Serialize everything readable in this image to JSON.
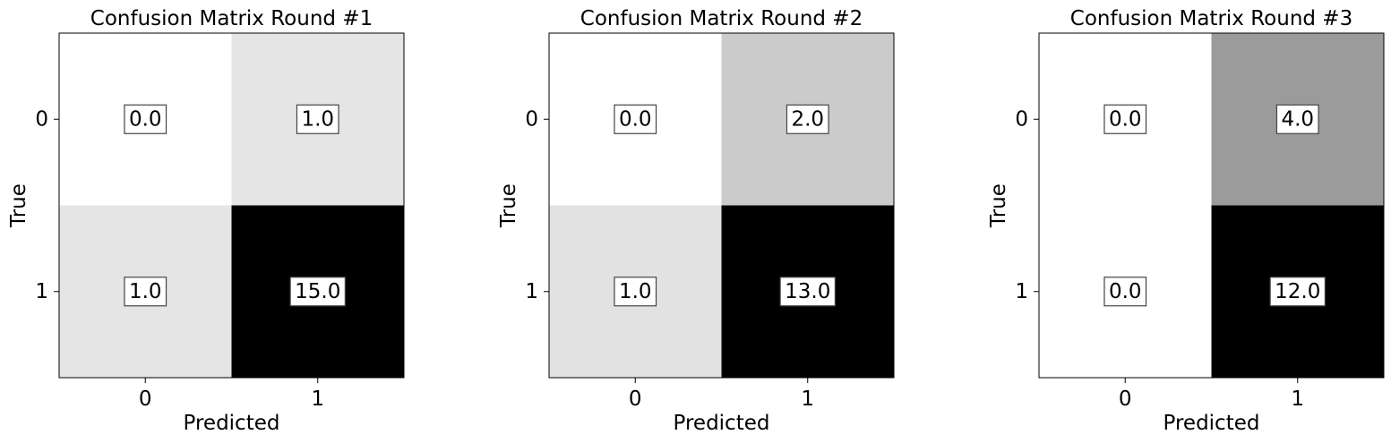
{
  "chart_data": [
    {
      "type": "heatmap",
      "title": "Confusion Matrix Round #1",
      "xlabel": "Predicted",
      "ylabel": "True",
      "x_categories": [
        "0",
        "1"
      ],
      "y_categories": [
        "0",
        "1"
      ],
      "values": [
        [
          0.0,
          1.0
        ],
        [
          1.0,
          15.0
        ]
      ],
      "cell_labels": [
        [
          "0.0",
          "1.0"
        ],
        [
          "1.0",
          "15.0"
        ]
      ],
      "colormap": "Greys",
      "color_range": [
        0,
        15
      ]
    },
    {
      "type": "heatmap",
      "title": "Confusion Matrix Round #2",
      "xlabel": "Predicted",
      "ylabel": "True",
      "x_categories": [
        "0",
        "1"
      ],
      "y_categories": [
        "0",
        "1"
      ],
      "values": [
        [
          0.0,
          2.0
        ],
        [
          1.0,
          13.0
        ]
      ],
      "cell_labels": [
        [
          "0.0",
          "2.0"
        ],
        [
          "1.0",
          "13.0"
        ]
      ],
      "colormap": "Greys",
      "color_range": [
        0,
        13
      ]
    },
    {
      "type": "heatmap",
      "title": "Confusion Matrix Round #3",
      "xlabel": "Predicted",
      "ylabel": "True",
      "x_categories": [
        "0",
        "1"
      ],
      "y_categories": [
        "0",
        "1"
      ],
      "values": [
        [
          0.0,
          4.0
        ],
        [
          0.0,
          12.0
        ]
      ],
      "cell_labels": [
        [
          "0.0",
          "4.0"
        ],
        [
          "0.0",
          "12.0"
        ]
      ],
      "colormap": "Greys",
      "color_range": [
        0,
        12
      ]
    }
  ]
}
